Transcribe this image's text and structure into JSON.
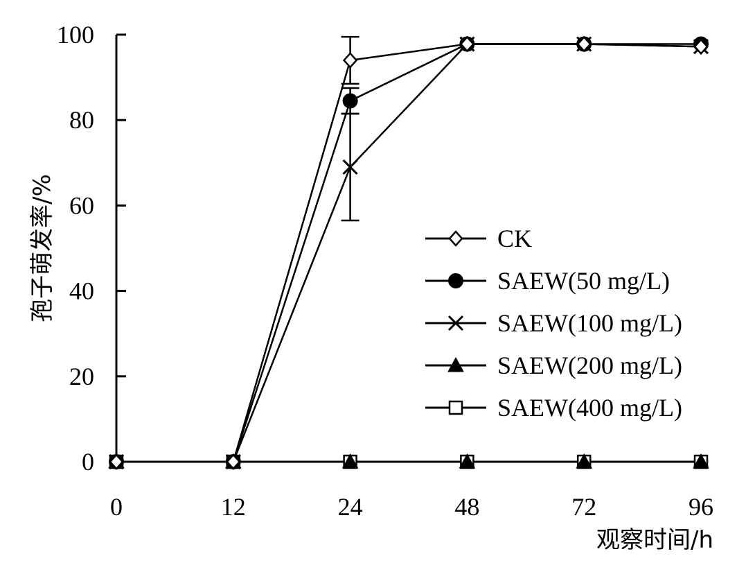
{
  "chart_data": {
    "type": "line",
    "title": "",
    "xlabel": "观察时间/h",
    "ylabel": "孢子萌发率/%",
    "categories": [
      "0",
      "12",
      "24",
      "48",
      "72",
      "96"
    ],
    "ylim": [
      0,
      100
    ],
    "yticks": [
      0,
      20,
      40,
      60,
      80,
      100
    ],
    "grid": false,
    "legend_position": "right",
    "series": [
      {
        "name": "CK",
        "marker": "diamond-open",
        "values": [
          0,
          0,
          94,
          97.8,
          97.8,
          97.2
        ],
        "error": [
          0,
          0,
          5.5,
          0,
          0,
          0
        ]
      },
      {
        "name": "SAEW(50 mg/L)",
        "marker": "circle-filled",
        "values": [
          0,
          0,
          84.5,
          97.8,
          97.8,
          97.8
        ],
        "error": [
          0,
          0,
          3,
          0,
          0,
          0
        ]
      },
      {
        "name": "SAEW(100 mg/L)",
        "marker": "x",
        "values": [
          0,
          0,
          69,
          97.8,
          97.8,
          97.2
        ],
        "error": [
          0,
          0,
          12.5,
          0,
          0,
          0
        ]
      },
      {
        "name": "SAEW(200 mg/L)",
        "marker": "triangle-filled",
        "values": [
          0,
          0,
          0,
          0,
          0,
          0
        ],
        "error": [
          0,
          0,
          0,
          0,
          0,
          0
        ]
      },
      {
        "name": "SAEW(400 mg/L)",
        "marker": "square-open",
        "values": [
          0,
          0,
          0,
          0,
          0,
          0
        ],
        "error": [
          0,
          0,
          0,
          0,
          0,
          0
        ]
      }
    ]
  }
}
